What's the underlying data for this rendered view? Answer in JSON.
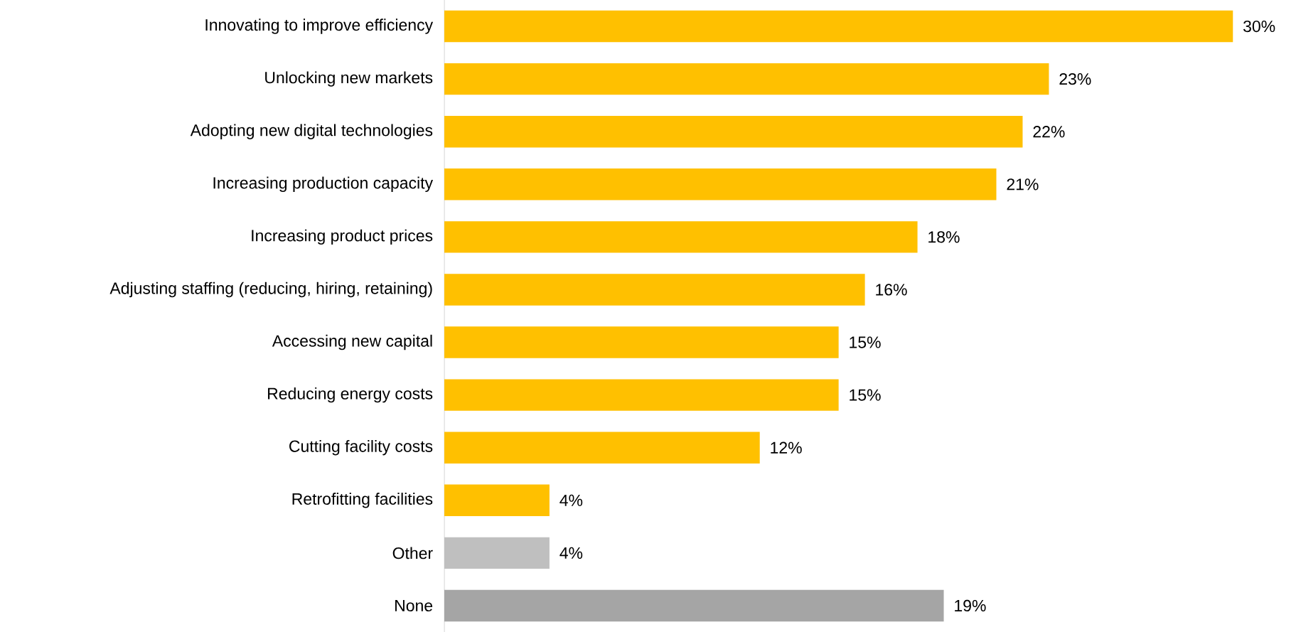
{
  "chart_data": {
    "type": "bar",
    "orientation": "horizontal",
    "categories": [
      "Innovating to improve efficiency",
      "Unlocking new markets",
      "Adopting new digital technologies",
      "Increasing production capacity",
      "Increasing product prices",
      "Adjusting staffing (reducing, hiring, retaining)",
      "Accessing new capital",
      "Reducing energy costs",
      "Cutting facility costs",
      "Retrofitting facilities",
      "Other",
      "None"
    ],
    "values": [
      30,
      23,
      22,
      21,
      18,
      16,
      15,
      15,
      12,
      4,
      4,
      19
    ],
    "colors": [
      "#ffc000",
      "#ffc000",
      "#ffc000",
      "#ffc000",
      "#ffc000",
      "#ffc000",
      "#ffc000",
      "#ffc000",
      "#ffc000",
      "#ffc000",
      "#bfbfbf",
      "#a5a5a5"
    ],
    "value_labels": [
      "30%",
      "23%",
      "22%",
      "21%",
      "18%",
      "16%",
      "15%",
      "15%",
      "12%",
      "4%",
      "4%",
      "19%"
    ]
  }
}
